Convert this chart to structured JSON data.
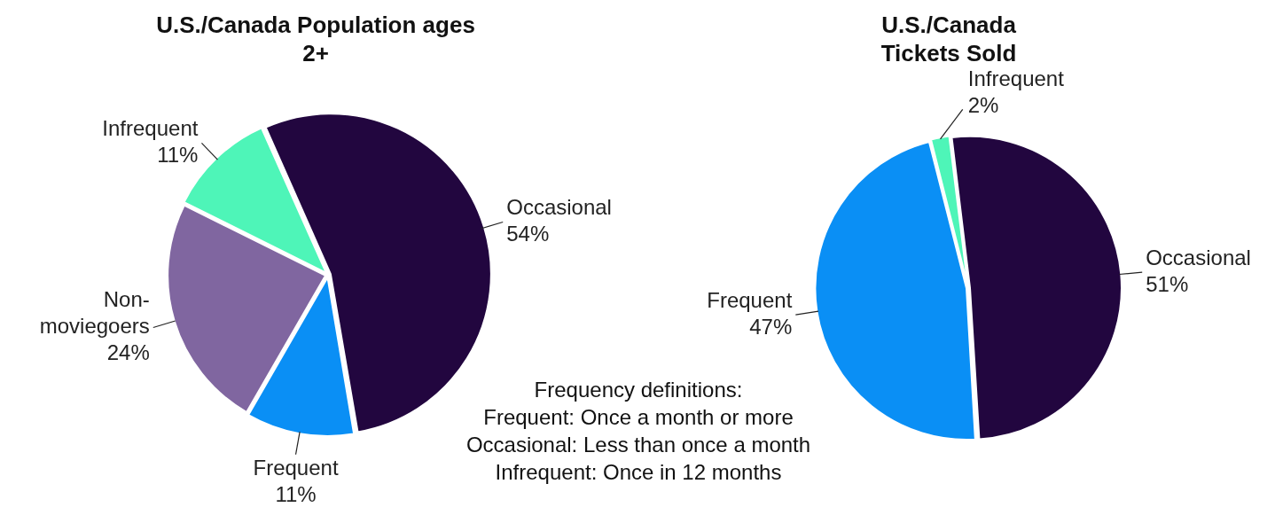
{
  "chart_data": [
    {
      "type": "pie",
      "title": "U.S./Canada Population ages 2+",
      "categories": [
        "Occasional",
        "Frequent",
        "Non-moviegoers",
        "Infrequent"
      ],
      "values": [
        54,
        11,
        24,
        11
      ],
      "colors": [
        "#22063f",
        "#0a8ff5",
        "#8066a0",
        "#4ef5b8"
      ],
      "value_labels": [
        "54%",
        "11%",
        "24%",
        "11%"
      ]
    },
    {
      "type": "pie",
      "title": "U.S./Canada Tickets Sold",
      "categories": [
        "Occasional",
        "Frequent",
        "Infrequent"
      ],
      "values": [
        51,
        47,
        2
      ],
      "colors": [
        "#22063f",
        "#0a8ff5",
        "#4ef5b8"
      ],
      "value_labels": [
        "51%",
        "47%",
        "2%"
      ]
    },
    {
      "type": "other",
      "title": "Frequency definitions:",
      "annotations": [
        "Frequent: Once a month or more",
        "Occasional: Less than once a month",
        "Infrequent: Once in 12 months"
      ]
    }
  ]
}
